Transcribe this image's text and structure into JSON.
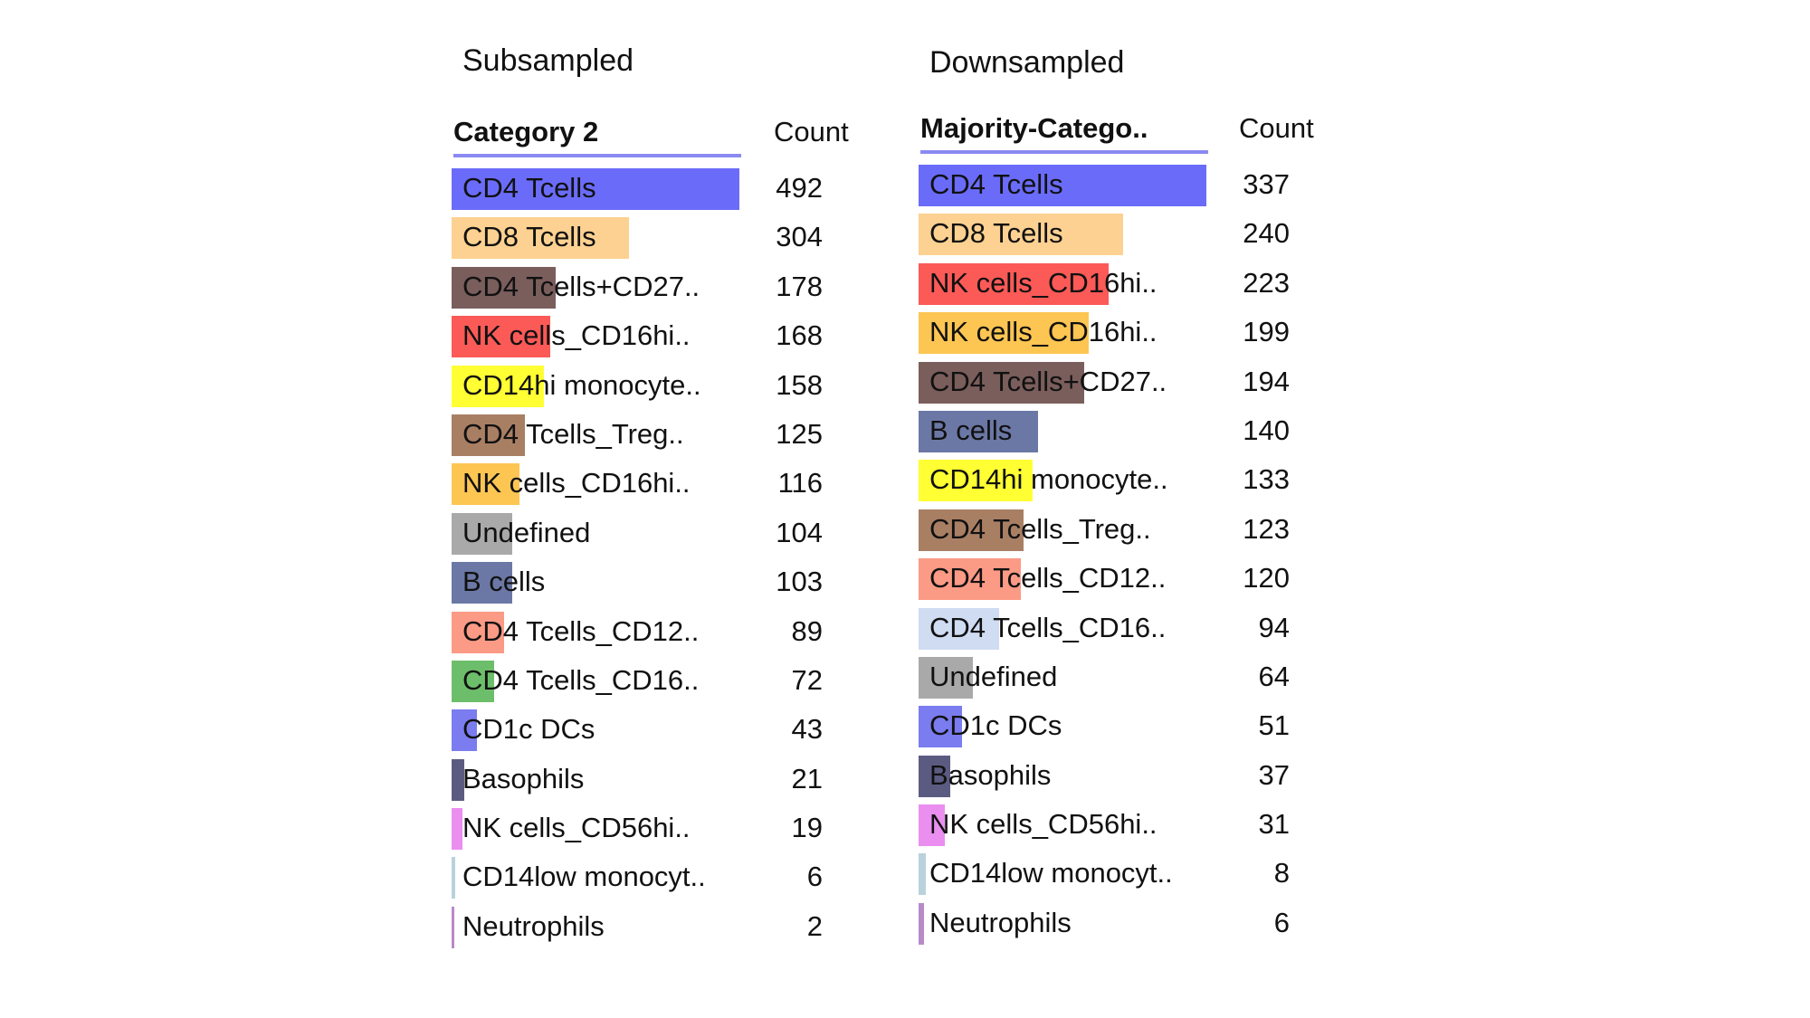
{
  "chart_data": [
    {
      "type": "bar",
      "title": "Subsampled",
      "category_header": "Category 2",
      "count_header": "Count",
      "orientation": "horizontal",
      "rows": [
        {
          "label": "CD4 Tcells",
          "value": 492,
          "color": "#6a6cf9"
        },
        {
          "label": "CD8 Tcells",
          "value": 304,
          "color": "#fdd191"
        },
        {
          "label": "CD4 Tcells+CD27..",
          "value": 178,
          "color": "#7a5e5c"
        },
        {
          "label": "NK cells_CD16hi..",
          "value": 168,
          "color": "#fb5a57"
        },
        {
          "label": "CD14hi monocyte..",
          "value": 158,
          "color": "#ffff33"
        },
        {
          "label": "CD4 Tcells_Treg..",
          "value": 125,
          "color": "#a97f64"
        },
        {
          "label": "NK cells_CD16hi..",
          "value": 116,
          "color": "#fdc552"
        },
        {
          "label": "Undefined",
          "value": 104,
          "color": "#a9a9a9"
        },
        {
          "label": "B cells",
          "value": 103,
          "color": "#6b78a5"
        },
        {
          "label": "CD4 Tcells_CD12..",
          "value": 89,
          "color": "#fb9a85"
        },
        {
          "label": "CD4 Tcells_CD16..",
          "value": 72,
          "color": "#6dbe6a"
        },
        {
          "label": "CD1c DCs",
          "value": 43,
          "color": "#7a7cf0"
        },
        {
          "label": "Basophils",
          "value": 21,
          "color": "#5b5b82"
        },
        {
          "label": "NK cells_CD56hi..",
          "value": 19,
          "color": "#ea8ef0"
        },
        {
          "label": "CD14low monocyt..",
          "value": 6,
          "color": "#b9d2db"
        },
        {
          "label": "Neutrophils",
          "value": 2,
          "color": "#b98ac8"
        }
      ]
    },
    {
      "type": "bar",
      "title": "Downsampled",
      "category_header": "Majority-Catego..",
      "count_header": "Count",
      "orientation": "horizontal",
      "rows": [
        {
          "label": "CD4 Tcells",
          "value": 337,
          "color": "#6a6cf9"
        },
        {
          "label": "CD8 Tcells",
          "value": 240,
          "color": "#fdd191"
        },
        {
          "label": "NK cells_CD16hi..",
          "value": 223,
          "color": "#fb5a57"
        },
        {
          "label": "NK cells_CD16hi..",
          "value": 199,
          "color": "#fdc552"
        },
        {
          "label": "CD4 Tcells+CD27..",
          "value": 194,
          "color": "#7a5e5c"
        },
        {
          "label": "B cells",
          "value": 140,
          "color": "#6b78a5"
        },
        {
          "label": "CD14hi monocyte..",
          "value": 133,
          "color": "#ffff33"
        },
        {
          "label": "CD4 Tcells_Treg..",
          "value": 123,
          "color": "#a97f64"
        },
        {
          "label": "CD4 Tcells_CD12..",
          "value": 120,
          "color": "#fb9a85"
        },
        {
          "label": "CD4 Tcells_CD16..",
          "value": 94,
          "color": "#cfdcf2"
        },
        {
          "label": "Undefined",
          "value": 64,
          "color": "#a9a9a9"
        },
        {
          "label": "CD1c DCs",
          "value": 51,
          "color": "#7a7cf0"
        },
        {
          "label": "Basophils",
          "value": 37,
          "color": "#5b5b82"
        },
        {
          "label": "NK cells_CD56hi..",
          "value": 31,
          "color": "#ea8ef0"
        },
        {
          "label": "CD14low monocyt..",
          "value": 8,
          "color": "#b9d2db"
        },
        {
          "label": "Neutrophils",
          "value": 6,
          "color": "#b98ac8"
        }
      ]
    }
  ]
}
